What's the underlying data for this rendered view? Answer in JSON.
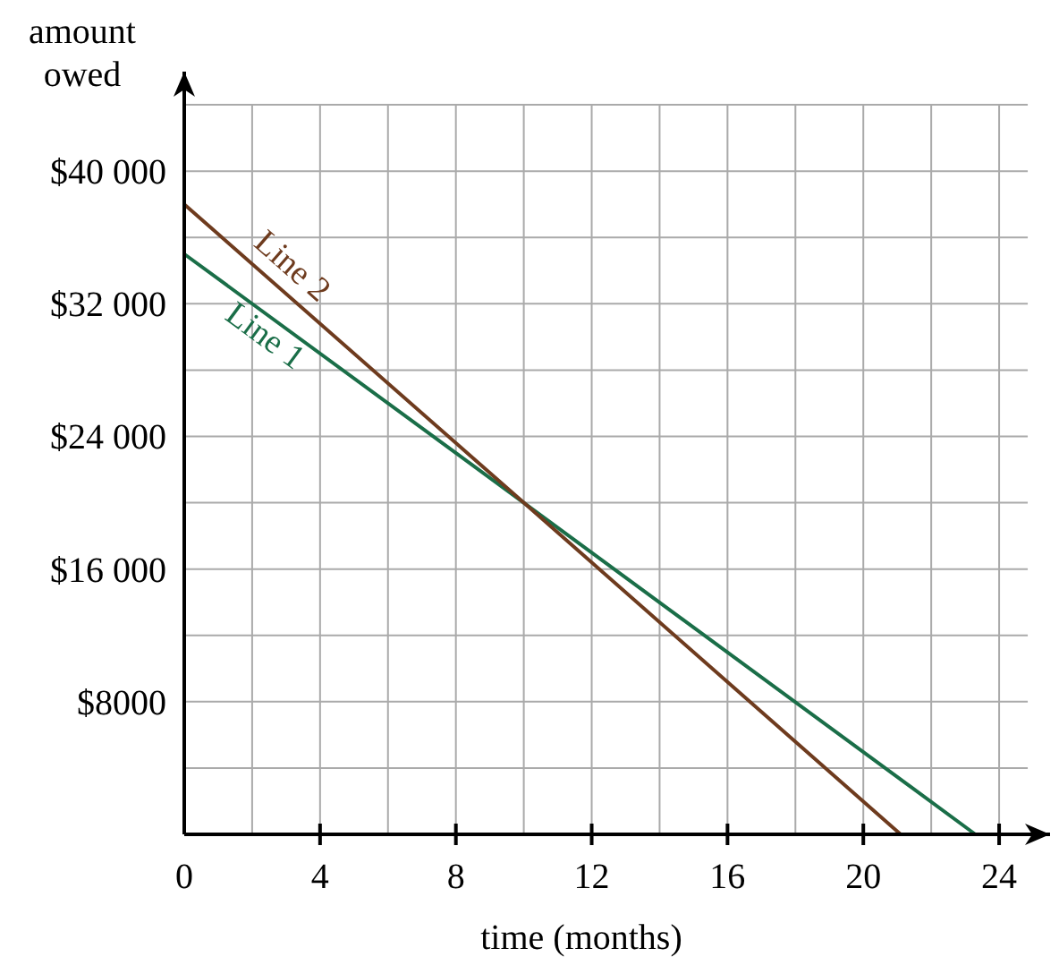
{
  "chart_data": {
    "type": "line",
    "xlabel": "time (months)",
    "ylabel": "amount owed",
    "xlim": [
      0,
      25.5
    ],
    "ylim": [
      0,
      46000
    ],
    "xticks": [
      0,
      {
        "value": 2,
        "label": null
      },
      4,
      {
        "value": 6,
        "label": null
      },
      8,
      {
        "value": 10,
        "label": null
      },
      12,
      {
        "value": 14,
        "label": null
      },
      16,
      {
        "value": 18,
        "label": null
      },
      20,
      {
        "value": 22,
        "label": null
      },
      24
    ],
    "yticks": [
      {
        "value": 4000,
        "label": null
      },
      {
        "value": 8000,
        "label": "$8000"
      },
      {
        "value": 12000,
        "label": null
      },
      {
        "value": 16000,
        "label": "$16 000"
      },
      {
        "value": 20000,
        "label": null
      },
      {
        "value": 24000,
        "label": "$24 000"
      },
      {
        "value": 28000,
        "label": null
      },
      {
        "value": 32000,
        "label": "$32 000"
      },
      {
        "value": 36000,
        "label": null
      },
      {
        "value": 40000,
        "label": "$40 000"
      },
      {
        "value": 44000,
        "label": null
      }
    ],
    "grid": true,
    "marker": "none",
    "line_style": "solid",
    "series": [
      {
        "name": "Line 1",
        "color": "#1a6e48",
        "x": [
          0,
          10,
          23.3
        ],
        "values": [
          35000,
          20000,
          0
        ]
      },
      {
        "name": "Line 2",
        "color": "#6e3b1e",
        "x": [
          0,
          10,
          21.1
        ],
        "values": [
          38000,
          20000,
          0
        ]
      }
    ]
  }
}
